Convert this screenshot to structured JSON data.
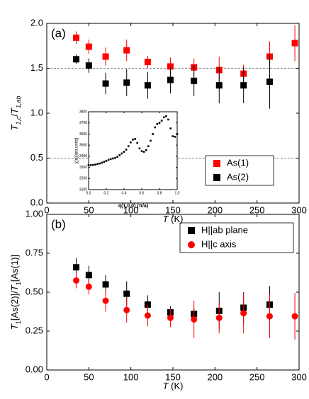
{
  "chart_data": [
    {
      "type": "scatter",
      "panel_label": "(a)",
      "xlabel": [
        "T",
        " (K)"
      ],
      "ylabel": [
        "T",
        "1,c",
        "/",
        "T",
        "1,ab"
      ],
      "xlim": [
        0,
        300
      ],
      "xticks": [
        0,
        50,
        100,
        150,
        200,
        250,
        300
      ],
      "ylim": [
        0,
        2
      ],
      "yticks": [
        {
          "value": 0,
          "label": "0.0"
        },
        0.5,
        {
          "value": 1,
          "label": "1.0"
        },
        1.5,
        {
          "value": 2,
          "label": "2.0"
        }
      ],
      "hlines": [
        1.5,
        0.5
      ],
      "legend": "lower right",
      "series": [
        {
          "name": "As(1)",
          "color": "#ff0000",
          "marker": "square",
          "x": [
            35,
            50,
            70,
            95,
            120,
            147,
            175,
            205,
            234,
            265,
            295
          ],
          "values": [
            1.84,
            1.74,
            1.63,
            1.7,
            1.57,
            1.52,
            1.51,
            1.48,
            1.44,
            1.63,
            1.78
          ],
          "errors": [
            0.07,
            0.08,
            0.1,
            0.12,
            0.07,
            0.1,
            0.1,
            0.15,
            0.1,
            0.17,
            0.2
          ]
        },
        {
          "name": "As(2)",
          "color": "#000000",
          "marker": "square",
          "x": [
            35,
            50,
            70,
            95,
            120,
            147,
            175,
            205,
            234,
            265
          ],
          "values": [
            1.6,
            1.53,
            1.33,
            1.34,
            1.31,
            1.37,
            1.36,
            1.31,
            1.31,
            1.35
          ],
          "errors": [
            0.05,
            0.08,
            0.12,
            0.15,
            0.15,
            0.15,
            0.17,
            0.2,
            0.2,
            0.3
          ]
        }
      ]
    },
    {
      "type": "scatter",
      "xlabel": "q(1,0,0) (π/a)",
      "ylabel": "χ(q)[arb.units]",
      "xlim": [
        0,
        1
      ],
      "xticks": [
        {
          "value": 0,
          "label": "0.0"
        },
        0.2,
        0.4,
        0.6,
        0.8,
        {
          "value": 1,
          "label": "1.0"
        }
      ],
      "ylim": [
        3100,
        3800
      ],
      "yticks": [
        3100,
        3200,
        3300,
        3400,
        3500,
        3600,
        3700,
        3800
      ],
      "series": [
        {
          "color": "#000000",
          "marker": "square",
          "x": [
            0,
            0.025,
            0.05,
            0.075,
            0.1,
            0.125,
            0.15,
            0.175,
            0.2,
            0.225,
            0.25,
            0.275,
            0.3,
            0.325,
            0.35,
            0.375,
            0.4,
            0.425,
            0.45,
            0.475,
            0.5,
            0.525,
            0.55,
            0.575,
            0.6,
            0.625,
            0.65,
            0.675,
            0.7,
            0.725,
            0.75,
            0.775,
            0.8,
            0.825,
            0.85,
            0.875,
            0.9,
            0.925,
            0.95,
            0.975,
            1
          ],
          "values": [
            3320,
            3320,
            3322,
            3325,
            3330,
            3335,
            3342,
            3350,
            3358,
            3368,
            3375,
            3380,
            3385,
            3395,
            3410,
            3425,
            3440,
            3460,
            3490,
            3525,
            3550,
            3555,
            3520,
            3470,
            3445,
            3440,
            3455,
            3490,
            3540,
            3600,
            3660,
            3690,
            3700,
            3720,
            3750,
            3760,
            3730,
            3650,
            3580,
            3575,
            3600
          ]
        }
      ]
    },
    {
      "type": "scatter",
      "panel_label": "(b)",
      "xlabel": [
        "T",
        " (K)"
      ],
      "ylabel": [
        "T",
        "1",
        "[As(2)]/",
        "T",
        "1",
        "[As(1)]"
      ],
      "xlim": [
        0,
        300
      ],
      "xticks": [
        0,
        50,
        100,
        150,
        200,
        250,
        300
      ],
      "ylim": [
        0,
        1
      ],
      "yticks": [
        {
          "value": 0,
          "label": "0.00"
        },
        0.25,
        {
          "value": 0.5,
          "label": "0.50"
        },
        0.75,
        {
          "value": 1,
          "label": "1.00"
        }
      ],
      "legend": "upper right",
      "series": [
        {
          "name": "H||ab plane",
          "color": "#000000",
          "marker": "square",
          "x": [
            35,
            50,
            70,
            95,
            120,
            147,
            175,
            205,
            234,
            265
          ],
          "values": [
            0.66,
            0.61,
            0.55,
            0.49,
            0.42,
            0.37,
            0.36,
            0.38,
            0.4,
            0.42
          ],
          "errors": [
            0.06,
            0.06,
            0.06,
            0.08,
            0.06,
            0.04,
            0.04,
            0.12,
            0.1,
            0.12
          ]
        },
        {
          "name": "H||c axis",
          "color": "#ff0000",
          "marker": "circle",
          "x": [
            35,
            50,
            70,
            95,
            120,
            147,
            175,
            205,
            234,
            265,
            295
          ],
          "values": [
            0.575,
            0.535,
            0.445,
            0.385,
            0.35,
            0.335,
            0.325,
            0.335,
            0.365,
            0.345,
            0.345
          ],
          "errors": [
            0.05,
            0.05,
            0.07,
            0.08,
            0.07,
            0.06,
            0.12,
            0.1,
            0.13,
            0.14,
            0.15
          ]
        }
      ]
    }
  ]
}
